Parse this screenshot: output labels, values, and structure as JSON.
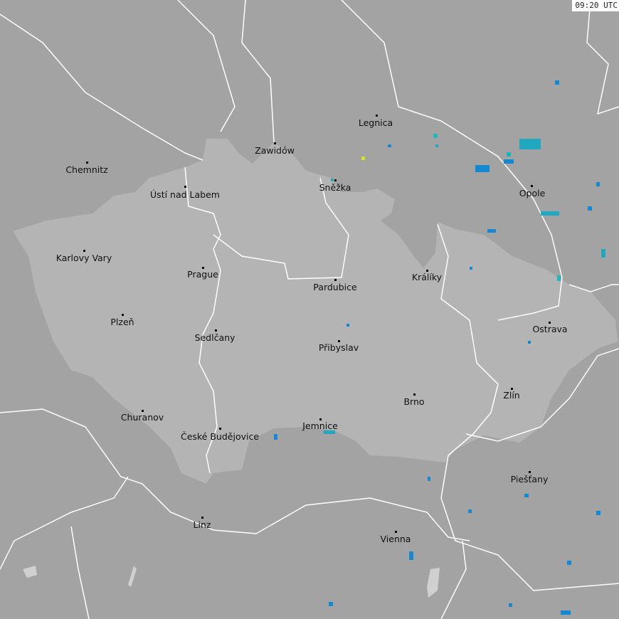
{
  "timestamp": "09:20 UTC",
  "colors": {
    "background": "#a3a3a3",
    "highlight_region": "#b4b4b4",
    "borders": "#ffffff",
    "strike_recent": "#d8e020",
    "strike_cyan": "#20b0b8",
    "strike_blue": "#1488d0"
  },
  "cities": [
    "Legnica",
    "Zawidów",
    "Chemnitz",
    "Ústí nad Labem",
    "Sněžka",
    "Opole",
    "Karlovy Vary",
    "Prague",
    "Králíky",
    "Pardubice",
    "Plzeň",
    "Ostrava",
    "Sedlčany",
    "Přibyslav",
    "Zlín",
    "Brno",
    "Churanov",
    "České Budějovice",
    "Jemnice",
    "Piešťany",
    "Linz",
    "Vienna"
  ]
}
